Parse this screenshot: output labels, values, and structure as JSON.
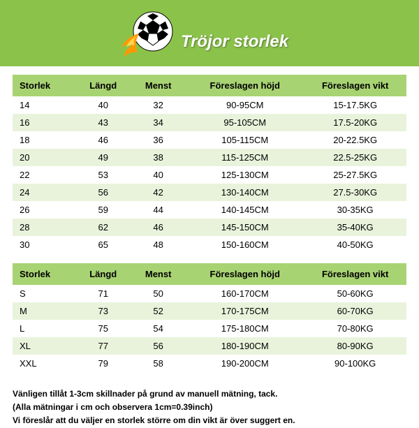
{
  "banner": {
    "title": "Tröjor storlek",
    "bg_color": "#8bc34a",
    "title_color": "#ffffff",
    "title_fontsize": 24
  },
  "table1": {
    "header_bg": "#a8d373",
    "alt_row_bg": "#e9f3dc",
    "columns": [
      "Storlek",
      "Längd",
      "Menst",
      "Föreslagen höjd",
      "Föreslagen vikt"
    ],
    "rows": [
      [
        "14",
        "40",
        "32",
        "90-95CM",
        "15-17.5KG"
      ],
      [
        "16",
        "43",
        "34",
        "95-105CM",
        "17.5-20KG"
      ],
      [
        "18",
        "46",
        "36",
        "105-115CM",
        "20-22.5KG"
      ],
      [
        "20",
        "49",
        "38",
        "115-125CM",
        "22.5-25KG"
      ],
      [
        "22",
        "53",
        "40",
        "125-130CM",
        "25-27.5KG"
      ],
      [
        "24",
        "56",
        "42",
        "130-140CM",
        "27.5-30KG"
      ],
      [
        "26",
        "59",
        "44",
        "140-145CM",
        "30-35KG"
      ],
      [
        "28",
        "62",
        "46",
        "145-150CM",
        "35-40KG"
      ],
      [
        "30",
        "65",
        "48",
        "150-160CM",
        "40-50KG"
      ]
    ]
  },
  "table2": {
    "header_bg": "#a8d373",
    "alt_row_bg": "#e9f3dc",
    "columns": [
      "Storlek",
      "Längd",
      "Menst",
      "Föreslagen höjd",
      "Föreslagen vikt"
    ],
    "rows": [
      [
        "S",
        "71",
        "50",
        "160-170CM",
        "50-60KG"
      ],
      [
        "M",
        "73",
        "52",
        "170-175CM",
        "60-70KG"
      ],
      [
        "L",
        "75",
        "54",
        "175-180CM",
        "70-80KG"
      ],
      [
        "XL",
        "77",
        "56",
        "180-190CM",
        "80-90KG"
      ],
      [
        "XXL",
        "79",
        "58",
        "190-200CM",
        "90-100KG"
      ]
    ]
  },
  "footnote": {
    "line1": "Vänligen tillåt 1-3cm skillnader på grund av manuell mätning, tack.",
    "line2": "(Alla mätningar i cm och observera 1cm=0.39inch)",
    "line3": "Vi föreslår att du väljer en storlek större om din vikt är över suggert en."
  },
  "col_widths": [
    "16%",
    "14%",
    "14%",
    "30%",
    "26%"
  ]
}
